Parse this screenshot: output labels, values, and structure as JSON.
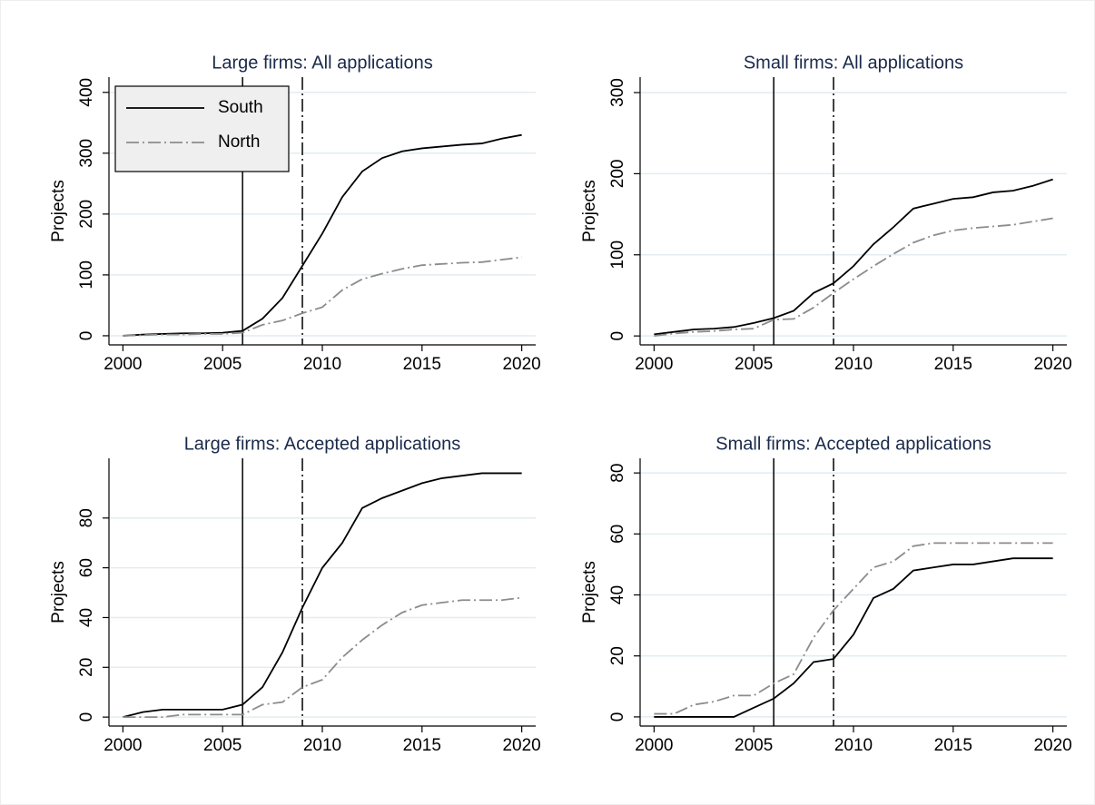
{
  "chart_data": [
    {
      "type": "line",
      "title": "Large firms: All applications",
      "ylabel": "Projects",
      "x": [
        2000,
        2001,
        2002,
        2003,
        2004,
        2005,
        2006,
        2007,
        2008,
        2009,
        2010,
        2011,
        2012,
        2013,
        2014,
        2015,
        2016,
        2017,
        2018,
        2019,
        2020
      ],
      "series": [
        {
          "name": "South",
          "color": "#000000",
          "dash": "solid",
          "values": [
            0,
            2,
            3,
            4,
            4,
            5,
            8,
            28,
            62,
            115,
            168,
            228,
            270,
            292,
            303,
            308,
            311,
            314,
            316,
            324,
            330
          ]
        },
        {
          "name": "North",
          "color": "#8c8c8c",
          "dash": "dashdot",
          "values": [
            0,
            1,
            2,
            2,
            3,
            3,
            5,
            18,
            25,
            37,
            47,
            75,
            93,
            102,
            110,
            116,
            118,
            120,
            121,
            125,
            129
          ]
        }
      ],
      "vlines": [
        {
          "x": 2006,
          "dash": "solid"
        },
        {
          "x": 2009,
          "dash": "dashdot"
        }
      ],
      "xlim": [
        1999.3,
        2020.7
      ],
      "xticks": [
        2000,
        2005,
        2010,
        2015,
        2020
      ],
      "ylim": [
        -15,
        425
      ],
      "yticks": [
        0,
        100,
        200,
        300,
        400
      ],
      "grid": true,
      "legend": "upper left"
    },
    {
      "type": "line",
      "title": "Small firms: All applications",
      "ylabel": "Projects",
      "x": [
        2000,
        2001,
        2002,
        2003,
        2004,
        2005,
        2006,
        2007,
        2008,
        2009,
        2010,
        2011,
        2012,
        2013,
        2014,
        2015,
        2016,
        2017,
        2018,
        2019,
        2020
      ],
      "series": [
        {
          "color": "#000000",
          "dash": "solid",
          "values": [
            2,
            5,
            8,
            9,
            11,
            16,
            22,
            31,
            53,
            65,
            86,
            113,
            134,
            157,
            163,
            169,
            171,
            177,
            179,
            185,
            193
          ]
        },
        {
          "color": "#8c8c8c",
          "dash": "dashdot",
          "values": [
            0,
            3,
            5,
            6,
            8,
            9,
            20,
            21,
            35,
            53,
            70,
            86,
            101,
            115,
            124,
            130,
            133,
            135,
            137,
            141,
            145
          ]
        }
      ],
      "vlines": [
        {
          "x": 2006,
          "dash": "solid"
        },
        {
          "x": 2009,
          "dash": "dashdot"
        }
      ],
      "xlim": [
        1999.3,
        2020.7
      ],
      "xticks": [
        2000,
        2005,
        2010,
        2015,
        2020
      ],
      "ylim": [
        -11,
        319
      ],
      "yticks": [
        0,
        100,
        200,
        300
      ],
      "grid": true
    },
    {
      "type": "line",
      "title": "Large firms: Accepted applications",
      "ylabel": "Projects",
      "x": [
        2000,
        2001,
        2002,
        2003,
        2004,
        2005,
        2006,
        2007,
        2008,
        2009,
        2010,
        2011,
        2012,
        2013,
        2014,
        2015,
        2016,
        2017,
        2018,
        2019,
        2020
      ],
      "series": [
        {
          "color": "#000000",
          "dash": "solid",
          "values": [
            0,
            2,
            3,
            3,
            3,
            3,
            5,
            12,
            26,
            44,
            60,
            70,
            84,
            88,
            91,
            94,
            96,
            97,
            98,
            98,
            98
          ]
        },
        {
          "color": "#8c8c8c",
          "dash": "dashdot",
          "values": [
            0,
            0,
            0,
            1,
            1,
            1,
            1,
            5,
            6,
            12,
            15,
            24,
            31,
            37,
            42,
            45,
            46,
            47,
            47,
            47,
            48
          ]
        }
      ],
      "vlines": [
        {
          "x": 2006,
          "dash": "solid"
        },
        {
          "x": 2009,
          "dash": "dashdot"
        }
      ],
      "xlim": [
        1999.3,
        2020.7
      ],
      "xticks": [
        2000,
        2005,
        2010,
        2015,
        2020
      ],
      "ylim": [
        -3.6,
        104
      ],
      "yticks": [
        0,
        20,
        40,
        60,
        80
      ],
      "grid": true
    },
    {
      "type": "line",
      "title": "Small firms: Accepted applications",
      "ylabel": "Projects",
      "x": [
        2000,
        2001,
        2002,
        2003,
        2004,
        2005,
        2006,
        2007,
        2008,
        2009,
        2010,
        2011,
        2012,
        2013,
        2014,
        2015,
        2016,
        2017,
        2018,
        2019,
        2020
      ],
      "series": [
        {
          "color": "#000000",
          "dash": "solid",
          "values": [
            0,
            0,
            0,
            0,
            0,
            3,
            6,
            11,
            18,
            19,
            27,
            39,
            42,
            48,
            49,
            50,
            50,
            51,
            52,
            52,
            52
          ]
        },
        {
          "color": "#8c8c8c",
          "dash": "dashdot",
          "values": [
            1,
            1,
            4,
            5,
            7,
            7,
            11,
            14,
            26,
            35,
            42,
            49,
            51,
            56,
            57,
            57,
            57,
            57,
            57,
            57,
            57
          ]
        }
      ],
      "vlines": [
        {
          "x": 2006,
          "dash": "solid"
        },
        {
          "x": 2009,
          "dash": "dashdot"
        }
      ],
      "xlim": [
        1999.3,
        2020.7
      ],
      "xticks": [
        2000,
        2005,
        2010,
        2015,
        2020
      ],
      "ylim": [
        -3,
        84.8
      ],
      "yticks": [
        0,
        20,
        40,
        60,
        80
      ],
      "grid": true
    }
  ]
}
